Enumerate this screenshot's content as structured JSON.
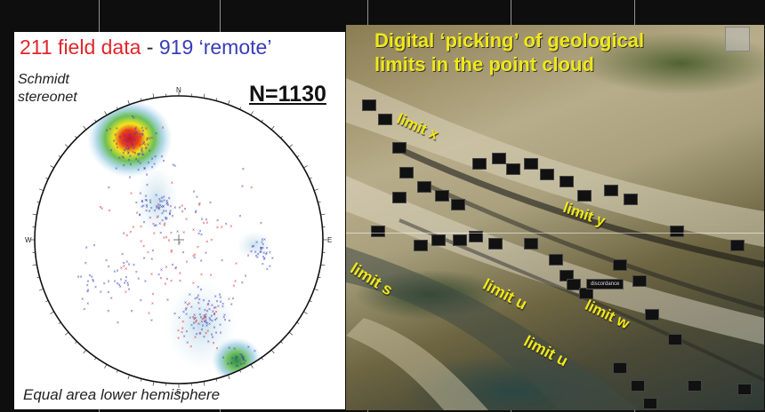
{
  "stereonet_panel": {
    "field_label": "211 field data",
    "dash": "-",
    "remote_label": "919 ‘remote’",
    "method_line1": "Schmidt",
    "method_line2": "stereonet",
    "count_label": "N=1130",
    "projection_label": "Equal area lower hemisphere",
    "directions": {
      "north": "N",
      "south": "S",
      "east": "E",
      "west": "W"
    },
    "colors": {
      "field": "#e0262a",
      "remote": "#3a3cb6",
      "density_high": "#c8102e",
      "density_mid": "#f2e51c",
      "density_low": "#6bbf59",
      "density_faint": "#9ecfe6"
    }
  },
  "point_cloud_panel": {
    "title_line1": "Digital ‘picking’ of geological",
    "title_line2": "limits in the point cloud",
    "limits": [
      "limit x",
      "limit y",
      "limit s",
      "limit u",
      "limit w",
      "limit u"
    ],
    "marker_label": "discordance",
    "close_icon": "close-icon",
    "text_color": "#f0e818"
  }
}
